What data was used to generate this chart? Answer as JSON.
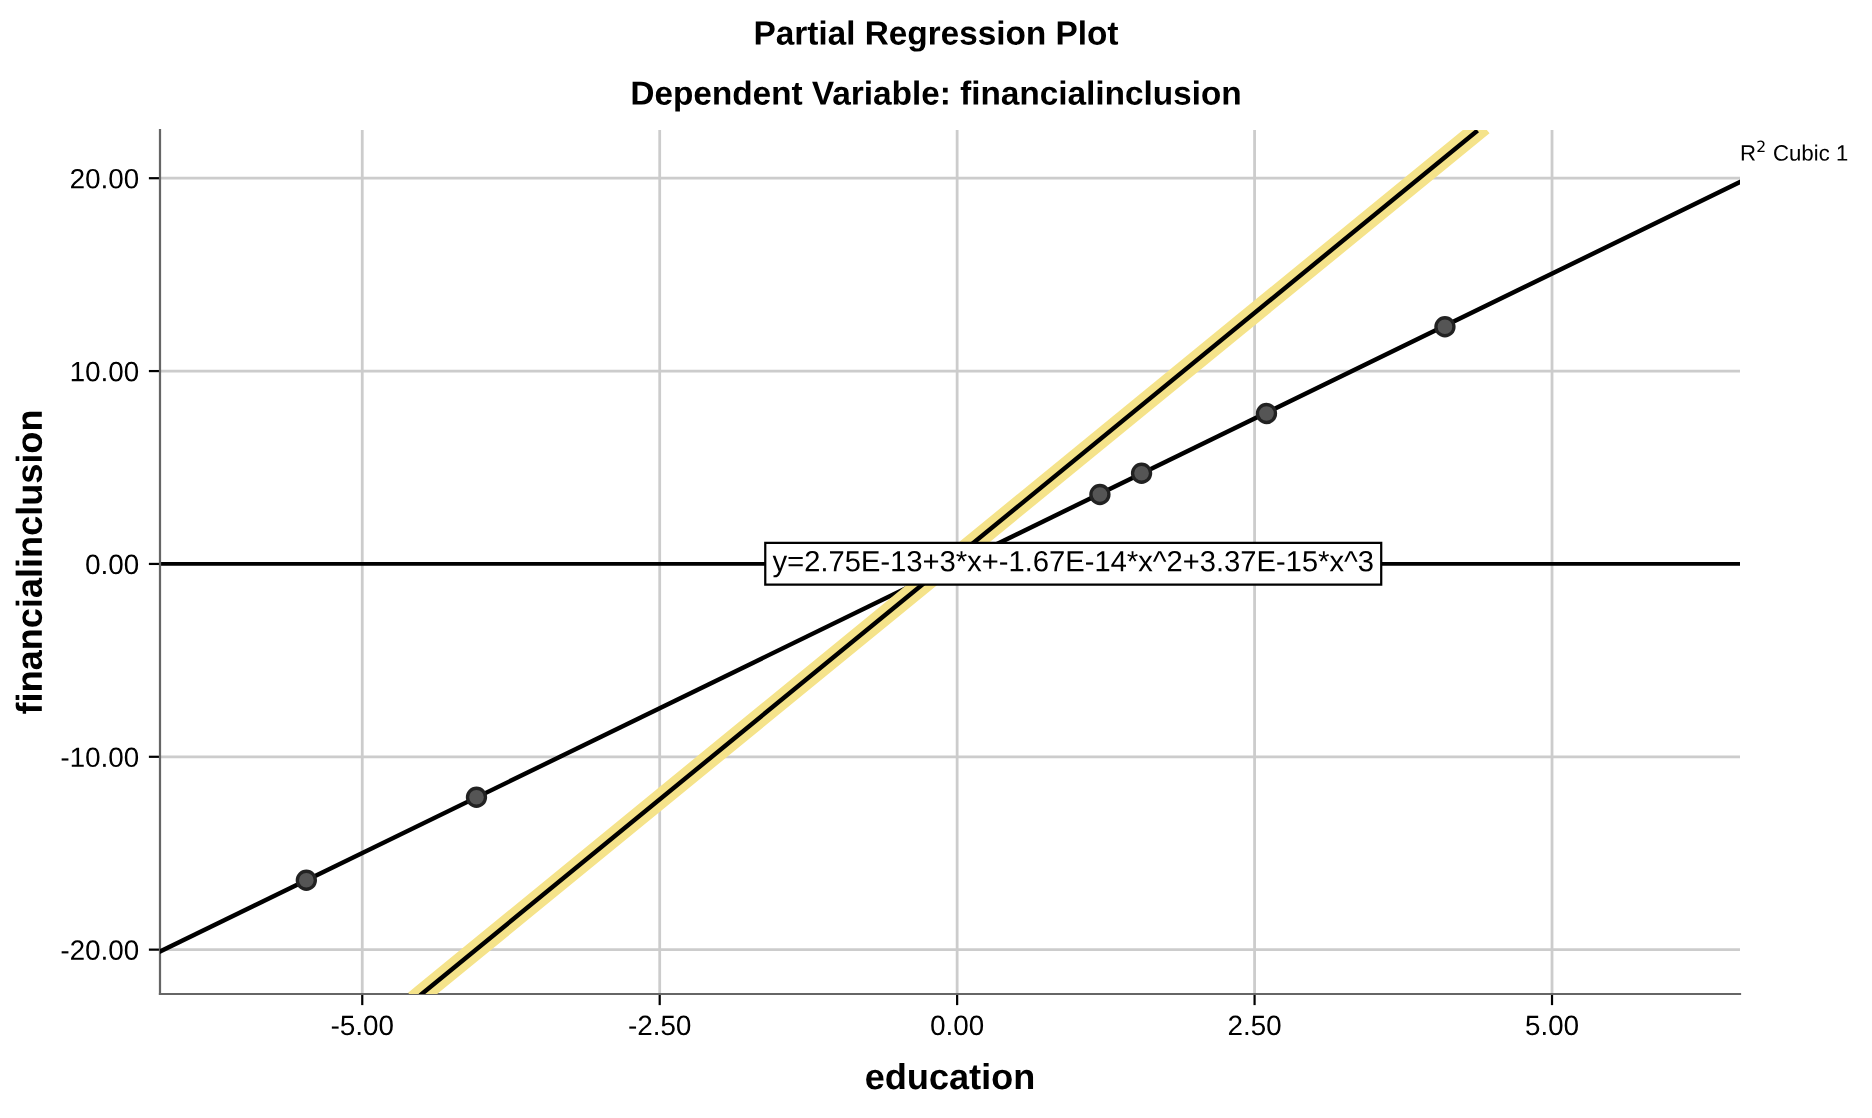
{
  "chart_data": {
    "type": "scatter",
    "title": "Partial Regression Plot",
    "subtitle": "Dependent Variable: financialinclusion",
    "xlabel": "education",
    "ylabel": "financialinclusion",
    "series": [
      {
        "color": "#555555",
        "marker": "circle",
        "x": [
          -5.47,
          -4.04,
          1.2,
          1.55,
          2.6,
          4.1
        ],
        "values": [
          -16.4,
          -12.1,
          3.6,
          4.7,
          7.8,
          12.3
        ]
      },
      {
        "type": "line",
        "name": "R$^{2}$ Cubic 1",
        "color": "#000000",
        "x": [
          -6.7,
          6.58
        ],
        "values": [
          -20.1,
          19.8
        ]
      },
      {
        "type": "line",
        "color": "#000000",
        "x": [
          -4.5,
          4.36
        ],
        "values": [
          -22.3,
          22.4
        ]
      }
    ],
    "annotations": [
      "y=2.75E-13+3*x+-1.67E-14*x^2+3.37E-15*x^3"
    ],
    "ref_lines": [
      {
        "axis": "y",
        "value": 0,
        "color": "#000000"
      }
    ],
    "xlim": [
      -6.7,
      6.58
    ],
    "ylim": [
      -22.3,
      22.5
    ],
    "xticks": [
      {
        "value": -5,
        "label": "-5.00"
      },
      {
        "value": -2.5,
        "label": "-2.50"
      },
      {
        "value": 0,
        "label": "0.00"
      },
      {
        "value": 2.5,
        "label": "2.50"
      },
      {
        "value": 5,
        "label": "5.00"
      }
    ],
    "yticks": [
      {
        "value": -20,
        "label": "-20.00"
      },
      {
        "value": -10,
        "label": "-10.00"
      },
      {
        "value": 0,
        "label": "0.00"
      },
      {
        "value": 10,
        "label": "10.00"
      },
      {
        "value": 20,
        "label": "20.00"
      }
    ],
    "grid": true
  }
}
